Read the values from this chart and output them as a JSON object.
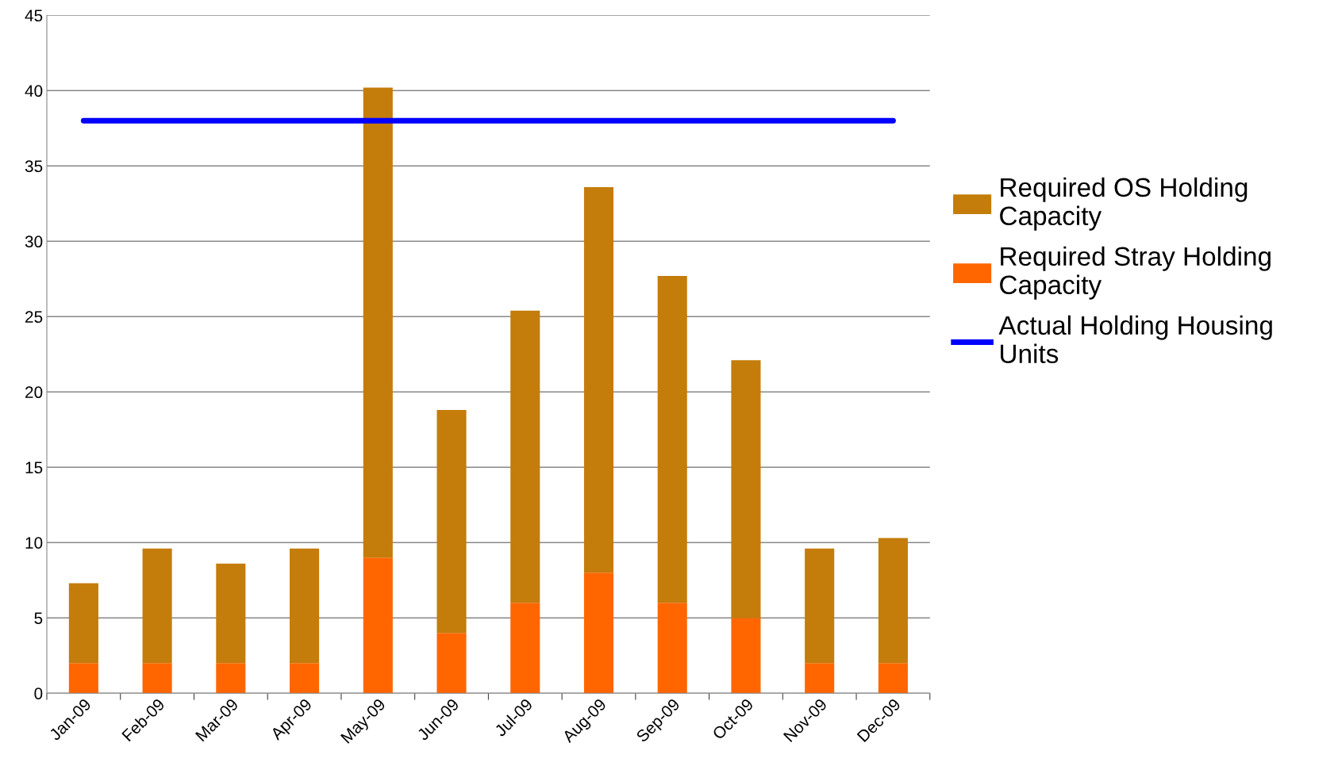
{
  "chart_data": {
    "type": "bar",
    "stacked": true,
    "categories": [
      "Jan-09",
      "Feb-09",
      "Mar-09",
      "Apr-09",
      "May-09",
      "Jun-09",
      "Jul-09",
      "Aug-09",
      "Sep-09",
      "Oct-09",
      "Nov-09",
      "Dec-09"
    ],
    "series": [
      {
        "name": "Required Stray Holding Capacity",
        "color": "#ff6600",
        "values": [
          2,
          2,
          2,
          2,
          9,
          4,
          6,
          8,
          6,
          5,
          2,
          2
        ]
      },
      {
        "name": "Required OS Holding Capacity",
        "color": "#c47c0a",
        "values": [
          5.3,
          7.6,
          6.6,
          7.6,
          31.2,
          14.8,
          19.4,
          25.6,
          21.7,
          17.1,
          7.6,
          8.3
        ]
      },
      {
        "name": "Actual Holding Housing Units",
        "type": "line",
        "color": "#0000ff",
        "values": [
          38,
          38,
          38,
          38,
          38,
          38,
          38,
          38,
          38,
          38,
          38,
          38
        ]
      }
    ],
    "ylim": [
      0,
      45
    ],
    "yticks": [
      0,
      5,
      10,
      15,
      20,
      25,
      30,
      35,
      40,
      45
    ],
    "grid": "y",
    "legend": "right"
  }
}
